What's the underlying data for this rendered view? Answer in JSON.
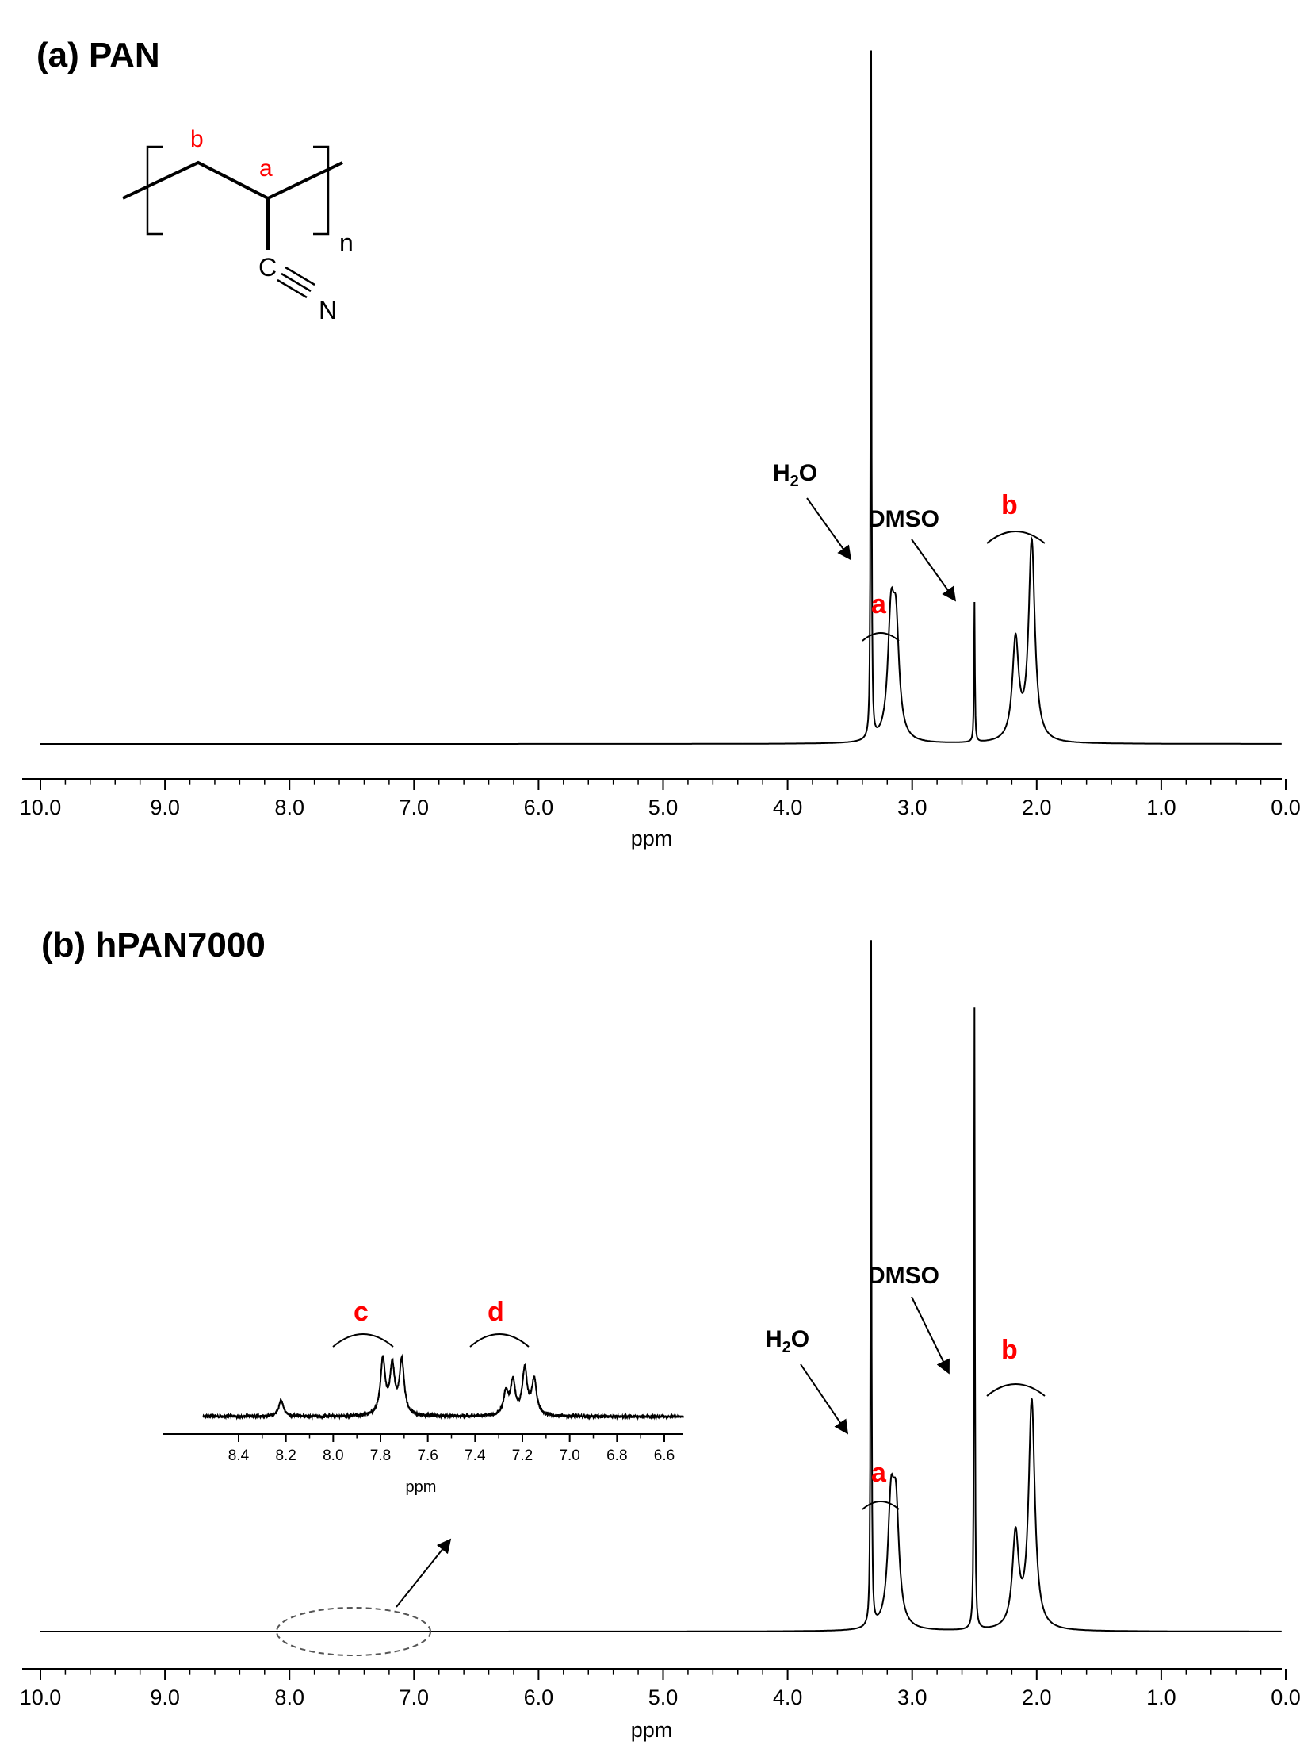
{
  "chart_data": [
    {
      "type": "line",
      "title": "(a) PAN",
      "xlabel": "ppm",
      "xlim": [
        10.0,
        0.0
      ],
      "x_reversed": true,
      "ylim": [
        0,
        1.0
      ],
      "ticks": [
        "10.0",
        "9.0",
        "8.0",
        "7.0",
        "6.0",
        "5.0",
        "4.0",
        "3.0",
        "2.0",
        "1.0",
        "0.0"
      ],
      "structure": {
        "labels": [
          "b",
          "a",
          "C",
          "N",
          "n"
        ]
      },
      "peaks": [
        {
          "ppm": 3.33,
          "height": 1.0,
          "label": "H₂O"
        },
        {
          "ppm": 3.17,
          "height": 0.16,
          "label": "a"
        },
        {
          "ppm": 3.13,
          "height": 0.145
        },
        {
          "ppm": 2.5,
          "height": 0.195,
          "label": "DMSO"
        },
        {
          "ppm": 2.17,
          "height": 0.14
        },
        {
          "ppm": 2.04,
          "height": 0.28,
          "label": "b"
        }
      ],
      "annotations": [
        {
          "text": "H",
          "sub": "2",
          "tail": "O",
          "color": "#000000"
        },
        {
          "text": "DMSO",
          "color": "#000000"
        },
        {
          "text": "a",
          "color": "#ff0000"
        },
        {
          "text": "b",
          "color": "#ff0000"
        }
      ]
    },
    {
      "type": "line",
      "title": "(b) hPAN7000",
      "xlabel": "ppm",
      "xlim": [
        10.0,
        0.0
      ],
      "x_reversed": true,
      "ylim": [
        0,
        1.0
      ],
      "ticks": [
        "10.0",
        "9.0",
        "8.0",
        "7.0",
        "6.0",
        "5.0",
        "4.0",
        "3.0",
        "2.0",
        "1.0",
        "0.0"
      ],
      "peaks": [
        {
          "ppm": 3.33,
          "height": 1.0,
          "label": "H₂O"
        },
        {
          "ppm": 3.17,
          "height": 0.16,
          "label": "a"
        },
        {
          "ppm": 3.13,
          "height": 0.15
        },
        {
          "ppm": 2.5,
          "height": 0.87,
          "label": "DMSO"
        },
        {
          "ppm": 2.17,
          "height": 0.13
        },
        {
          "ppm": 2.04,
          "height": 0.32,
          "label": "b"
        }
      ],
      "annotations": [
        {
          "text": "H",
          "sub": "2",
          "tail": "O",
          "color": "#000000"
        },
        {
          "text": "DMSO",
          "color": "#000000"
        },
        {
          "text": "a",
          "color": "#ff0000"
        },
        {
          "text": "b",
          "color": "#ff0000"
        }
      ],
      "inset": {
        "xlabel": "ppm",
        "xlim": [
          8.55,
          6.45
        ],
        "ticks": [
          "8.4",
          "8.2",
          "8.0",
          "7.8",
          "7.6",
          "7.4",
          "7.2",
          "7.0",
          "6.8",
          "6.6"
        ],
        "peaks": [
          {
            "ppm": 8.22,
            "height": 0.2
          },
          {
            "ppm": 7.79,
            "height": 0.7
          },
          {
            "ppm": 7.75,
            "height": 0.6
          },
          {
            "ppm": 7.71,
            "height": 0.68
          },
          {
            "ppm": 7.27,
            "height": 0.28
          },
          {
            "ppm": 7.24,
            "height": 0.42
          },
          {
            "ppm": 7.19,
            "height": 0.58
          },
          {
            "ppm": 7.15,
            "height": 0.45
          }
        ],
        "annotations": [
          {
            "text": "c",
            "color": "#ff0000"
          },
          {
            "text": "d",
            "color": "#ff0000"
          }
        ]
      }
    }
  ]
}
